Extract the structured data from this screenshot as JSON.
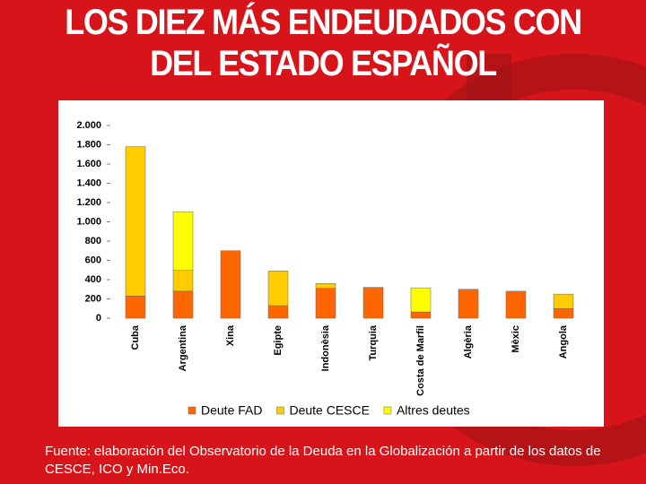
{
  "chart_data": {
    "type": "stacked-bar",
    "title": "LOS DIEZ MÁS ENDEUDADOS CON DEL ESTADO ESPAÑOL",
    "source": "Fuente: elaboración del Observatorio de la Deuda en la Globalización a partir de los datos de CESCE, ICO y Min.Eco.",
    "categories": [
      "Cuba",
      "Argentina",
      "Xina",
      "Egipte",
      "Indonèsia",
      "Turquia",
      "Costa de Marfil",
      "Algèria",
      "Mèxic",
      "Angola"
    ],
    "series": [
      {
        "name": "Deute FAD",
        "color": "#ff6600",
        "values": [
          230,
          280,
          700,
          130,
          310,
          320,
          65,
          300,
          280,
          100
        ]
      },
      {
        "name": "Deute CESCE",
        "color": "#ffcc00",
        "values": [
          1550,
          215,
          0,
          360,
          50,
          0,
          0,
          0,
          0,
          150
        ]
      },
      {
        "name": "Altres deutes",
        "color": "#ffff00",
        "values": [
          0,
          610,
          0,
          0,
          0,
          0,
          250,
          0,
          0,
          0
        ]
      }
    ],
    "ylim": [
      0,
      2000
    ],
    "yticks": [
      0,
      200,
      400,
      600,
      800,
      {
        "value": 1000,
        "label": "1.000"
      },
      {
        "value": 1200,
        "label": "1.200"
      },
      {
        "value": 1400,
        "label": "1.400"
      },
      {
        "value": 1600,
        "label": "1.600"
      },
      {
        "value": 1800,
        "label": "1.800"
      },
      {
        "value": 2000,
        "label": "2.000"
      }
    ]
  }
}
